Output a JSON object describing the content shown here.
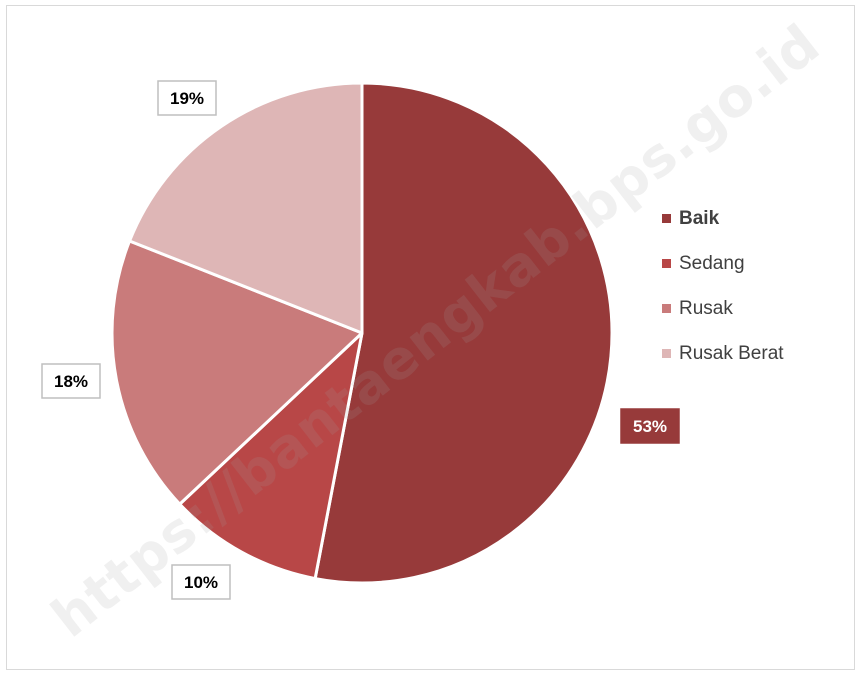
{
  "chart_data": {
    "type": "pie",
    "title": "",
    "categories": [
      "Baik",
      "Sedang",
      "Rusak",
      "Rusak Berat"
    ],
    "values": [
      53,
      10,
      18,
      19
    ],
    "labels": [
      "53%",
      "10%",
      "18%",
      "19%"
    ],
    "colors": [
      "#973a3a",
      "#b84747",
      "#c97b7b",
      "#deb6b6"
    ],
    "legend_position": "right"
  },
  "watermark": "https://bantaengkab.bps.go.id"
}
